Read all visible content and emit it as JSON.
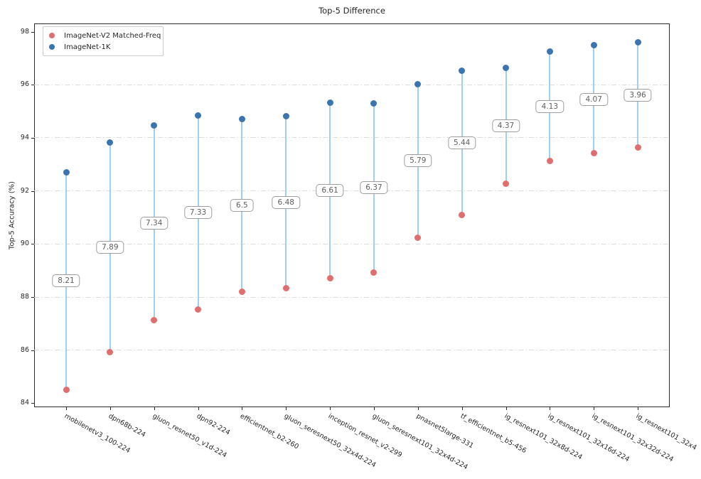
{
  "title": "Top-5 Difference",
  "ylabel": "Top-5 Accuracy (%)",
  "legend": [
    {
      "label": "ImageNet-V2 Matched-Freq",
      "color": "#e06e6e"
    },
    {
      "label": "ImageNet-1K",
      "color": "#3b75af"
    }
  ],
  "colors": {
    "v2_marker": "#e06e6e",
    "ik_marker": "#3b75af",
    "stem": "#9fd1ef",
    "grid": "#dcdcdc",
    "spine": "#2b2b2b",
    "annotation_text": "#5f5f5f",
    "annotation_border": "#9e9e9e"
  },
  "chart_data": {
    "type": "scatter",
    "subtype": "dumbbell-lollipop",
    "title": "Top-5 Difference",
    "xlabel": "",
    "ylabel": "Top-5 Accuracy (%)",
    "ylim": [
      83.85,
      98.3
    ],
    "yticks": [
      84,
      86,
      88,
      90,
      92,
      94,
      96,
      98
    ],
    "grid": "horizontal dashed (dash-dot) at ticks 86-96",
    "legend_position": "upper left",
    "categories": [
      "mobilenetv3_100-224",
      "dpn68b-224",
      "gluon_resnet50_v1d-224",
      "dpn92-224",
      "efficientnet_b2-260",
      "gluon_seresnext50_32x4d-224",
      "inception_resnet_v2-299",
      "gluon_seresnext101_32x4d-224",
      "pnasnet5large-331",
      "tf_efficientnet_b5-456",
      "ig_resnext101_32x8d-224",
      "ig_resnext101_32x16d-224",
      "ig_resnext101_32x32d-224",
      "ig_resnext101_32x4"
    ],
    "series": [
      {
        "name": "ImageNet-V2 Matched-Freq",
        "color": "#e06e6e",
        "values": [
          84.5,
          85.93,
          87.12,
          87.52,
          88.2,
          88.33,
          88.71,
          88.93,
          90.24,
          91.08,
          92.26,
          93.12,
          93.41,
          93.63
        ]
      },
      {
        "name": "ImageNet-1K",
        "color": "#3b75af",
        "values": [
          92.71,
          93.82,
          94.46,
          94.85,
          94.7,
          94.81,
          95.32,
          95.3,
          96.03,
          96.52,
          96.63,
          97.25,
          97.48,
          97.59
        ]
      }
    ],
    "diff_labels": [
      "8.21",
      "7.89",
      "7.34",
      "7.33",
      "6.5",
      "6.48",
      "6.61",
      "6.37",
      "5.79",
      "5.44",
      "4.37",
      "4.13",
      "4.07",
      "3.96"
    ]
  }
}
